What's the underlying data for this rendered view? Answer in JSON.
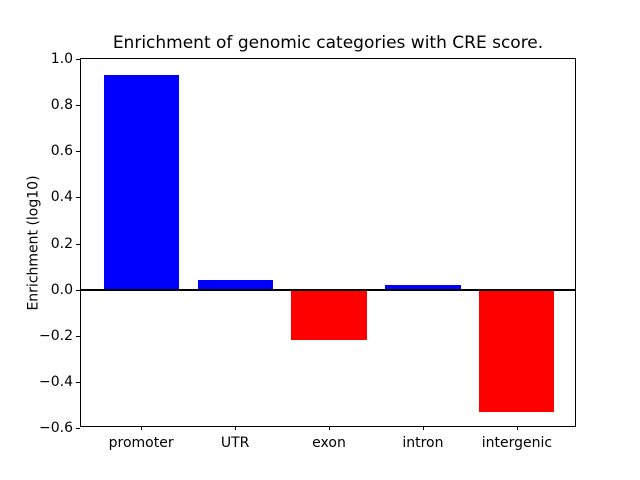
{
  "chart_data": {
    "type": "bar",
    "title": "Enrichment of genomic categories with CRE score.",
    "xlabel": "",
    "ylabel": "Enrichment (log10)",
    "categories": [
      "promoter",
      "UTR",
      "exon",
      "intron",
      "intergenic"
    ],
    "values": [
      0.93,
      0.04,
      -0.22,
      0.02,
      -0.53
    ],
    "bar_colors": [
      "#0000ff",
      "#0000ff",
      "#ff0000",
      "#0000ff",
      "#ff0000"
    ],
    "positive_color": "#0000ff",
    "negative_color": "#ff0000",
    "bar_width": 0.8,
    "ylim": [
      -0.6,
      1.0
    ],
    "xlim": [
      -0.64,
      4.64
    ],
    "yticks": [
      1.0,
      0.8,
      0.6,
      0.4,
      0.2,
      0.0,
      -0.2,
      -0.4,
      -0.6
    ],
    "ytick_labels": [
      "1.0",
      "0.8",
      "0.6",
      "0.4",
      "0.2",
      "0.0",
      "−0.2",
      "−0.4",
      "−0.6"
    ],
    "zero_line": 0.0,
    "grid": false,
    "legend": "none",
    "axis_color": "#000000",
    "background_color": "#ffffff"
  }
}
